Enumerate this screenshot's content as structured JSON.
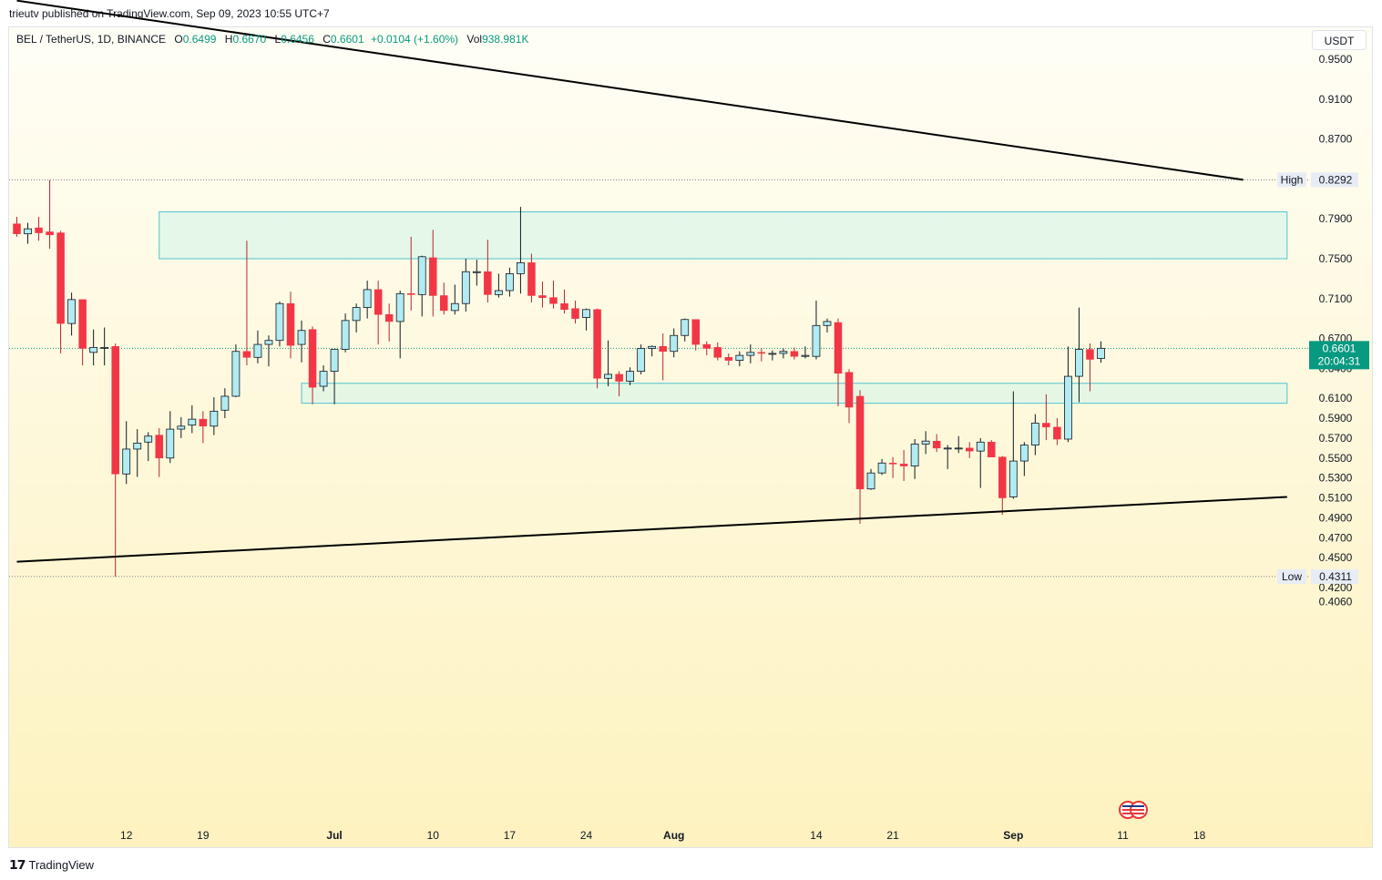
{
  "header": {
    "publisher_text": "trieutv published on TradingView.com, Sep 09, 2023 10:55 UTC+7"
  },
  "legend": {
    "symbol": "BEL / TetherUS, 1D, BINANCE",
    "open_label": "O",
    "open": "0.6499",
    "high_label": "H",
    "high": "0.6670",
    "low_label": "L",
    "low": "0.6456",
    "close_label": "C",
    "close": "0.6601",
    "change": "+0.0104 (+1.60%)",
    "vol_label": "Vol",
    "volume": "938.981K"
  },
  "currency_button": "USDT",
  "footer": {
    "brand": "TradingView"
  },
  "colors": {
    "up_fill": "#b2ebf2",
    "up_border": "#131722",
    "down_fill": "#f23645",
    "down_border": "#131722",
    "wick_up": "#131722",
    "wick_down": "#b22833",
    "zone_fill": "#d4f5e9",
    "zone_border": "#4fc3d0",
    "price_tag": "#089981",
    "line": "#000000"
  },
  "chart_data": {
    "type": "candlestick",
    "symbol": "BEL / TetherUS",
    "interval": "1D",
    "exchange": "BINANCE",
    "y_axis_ticks": [
      "0.9500",
      "0.9100",
      "0.8700",
      "0.7900",
      "0.7500",
      "0.7100",
      "0.6700",
      "0.6400",
      "0.6100",
      "0.5900",
      "0.5700",
      "0.5500",
      "0.5300",
      "0.5100",
      "0.4900",
      "0.4700",
      "0.4500",
      "0.4200",
      "0.4060"
    ],
    "x_axis_ticks": [
      "12",
      "19",
      "Jul",
      "10",
      "17",
      "24",
      "Aug",
      "14",
      "21",
      "Sep",
      "11",
      "18"
    ],
    "high_marker": {
      "label": "High",
      "value": "0.8292"
    },
    "low_marker": {
      "label": "Low",
      "value": "0.4311"
    },
    "last_price": {
      "value": "0.6601",
      "countdown": "20:04:31"
    },
    "zones": [
      {
        "from_date": "2023-06-15",
        "to_date": "2023-09-26",
        "low": 0.75,
        "high": 0.797
      },
      {
        "from_date": "2023-06-28",
        "to_date": "2023-09-26",
        "low": 0.605,
        "high": 0.625
      }
    ],
    "trendlines": [
      {
        "date1": "2023-06-02",
        "price1": 1.009,
        "date2": "2023-09-22",
        "price2": 0.8292
      },
      {
        "date1": "2023-06-02",
        "price1": 0.446,
        "date2": "2023-09-26",
        "price2": 0.511
      }
    ],
    "candles": [
      {
        "date": "2023-06-02",
        "o": 0.785,
        "h": 0.792,
        "l": 0.772,
        "c": 0.775
      },
      {
        "date": "2023-06-03",
        "o": 0.775,
        "h": 0.786,
        "l": 0.765,
        "c": 0.78
      },
      {
        "date": "2023-06-04",
        "o": 0.781,
        "h": 0.792,
        "l": 0.768,
        "c": 0.776
      },
      {
        "date": "2023-06-05",
        "o": 0.777,
        "h": 0.829,
        "l": 0.76,
        "c": 0.774
      },
      {
        "date": "2023-06-06",
        "o": 0.776,
        "h": 0.778,
        "l": 0.655,
        "c": 0.685
      },
      {
        "date": "2023-06-07",
        "o": 0.685,
        "h": 0.716,
        "l": 0.673,
        "c": 0.709
      },
      {
        "date": "2023-06-08",
        "o": 0.709,
        "h": 0.709,
        "l": 0.643,
        "c": 0.66
      },
      {
        "date": "2023-06-09",
        "o": 0.656,
        "h": 0.679,
        "l": 0.643,
        "c": 0.661
      },
      {
        "date": "2023-06-10",
        "o": 0.661,
        "h": 0.681,
        "l": 0.643,
        "c": 0.661
      },
      {
        "date": "2023-06-11",
        "o": 0.662,
        "h": 0.665,
        "l": 0.431,
        "c": 0.534
      },
      {
        "date": "2023-06-12",
        "o": 0.534,
        "h": 0.587,
        "l": 0.524,
        "c": 0.559
      },
      {
        "date": "2023-06-13",
        "o": 0.559,
        "h": 0.579,
        "l": 0.531,
        "c": 0.565
      },
      {
        "date": "2023-06-14",
        "o": 0.566,
        "h": 0.576,
        "l": 0.547,
        "c": 0.572
      },
      {
        "date": "2023-06-15",
        "o": 0.573,
        "h": 0.58,
        "l": 0.531,
        "c": 0.55
      },
      {
        "date": "2023-06-16",
        "o": 0.55,
        "h": 0.597,
        "l": 0.545,
        "c": 0.579
      },
      {
        "date": "2023-06-17",
        "o": 0.579,
        "h": 0.591,
        "l": 0.57,
        "c": 0.582
      },
      {
        "date": "2023-06-18",
        "o": 0.583,
        "h": 0.603,
        "l": 0.575,
        "c": 0.589
      },
      {
        "date": "2023-06-19",
        "o": 0.589,
        "h": 0.597,
        "l": 0.565,
        "c": 0.582
      },
      {
        "date": "2023-06-20",
        "o": 0.582,
        "h": 0.611,
        "l": 0.573,
        "c": 0.597
      },
      {
        "date": "2023-06-21",
        "o": 0.598,
        "h": 0.62,
        "l": 0.59,
        "c": 0.612
      },
      {
        "date": "2023-06-22",
        "o": 0.612,
        "h": 0.664,
        "l": 0.611,
        "c": 0.657
      },
      {
        "date": "2023-06-23",
        "o": 0.657,
        "h": 0.768,
        "l": 0.643,
        "c": 0.651
      },
      {
        "date": "2023-06-24",
        "o": 0.651,
        "h": 0.678,
        "l": 0.645,
        "c": 0.664
      },
      {
        "date": "2023-06-25",
        "o": 0.664,
        "h": 0.673,
        "l": 0.642,
        "c": 0.668
      },
      {
        "date": "2023-06-26",
        "o": 0.668,
        "h": 0.707,
        "l": 0.662,
        "c": 0.705
      },
      {
        "date": "2023-06-27",
        "o": 0.705,
        "h": 0.717,
        "l": 0.65,
        "c": 0.663
      },
      {
        "date": "2023-06-28",
        "o": 0.664,
        "h": 0.688,
        "l": 0.646,
        "c": 0.678
      },
      {
        "date": "2023-06-29",
        "o": 0.679,
        "h": 0.682,
        "l": 0.604,
        "c": 0.621
      },
      {
        "date": "2023-06-30",
        "o": 0.622,
        "h": 0.643,
        "l": 0.617,
        "c": 0.637
      },
      {
        "date": "2023-07-01",
        "o": 0.637,
        "h": 0.659,
        "l": 0.604,
        "c": 0.659
      },
      {
        "date": "2023-07-02",
        "o": 0.659,
        "h": 0.695,
        "l": 0.656,
        "c": 0.688
      },
      {
        "date": "2023-07-03",
        "o": 0.688,
        "h": 0.705,
        "l": 0.676,
        "c": 0.701
      },
      {
        "date": "2023-07-04",
        "o": 0.701,
        "h": 0.728,
        "l": 0.69,
        "c": 0.719
      },
      {
        "date": "2023-07-05",
        "o": 0.719,
        "h": 0.728,
        "l": 0.664,
        "c": 0.694
      },
      {
        "date": "2023-07-06",
        "o": 0.694,
        "h": 0.705,
        "l": 0.667,
        "c": 0.687
      },
      {
        "date": "2023-07-07",
        "o": 0.687,
        "h": 0.718,
        "l": 0.65,
        "c": 0.715
      },
      {
        "date": "2023-07-08",
        "o": 0.715,
        "h": 0.772,
        "l": 0.698,
        "c": 0.714
      },
      {
        "date": "2023-07-09",
        "o": 0.714,
        "h": 0.753,
        "l": 0.692,
        "c": 0.752
      },
      {
        "date": "2023-07-10",
        "o": 0.751,
        "h": 0.779,
        "l": 0.692,
        "c": 0.713
      },
      {
        "date": "2023-07-11",
        "o": 0.713,
        "h": 0.726,
        "l": 0.694,
        "c": 0.698
      },
      {
        "date": "2023-07-12",
        "o": 0.698,
        "h": 0.724,
        "l": 0.694,
        "c": 0.705
      },
      {
        "date": "2023-07-13",
        "o": 0.705,
        "h": 0.75,
        "l": 0.697,
        "c": 0.737
      },
      {
        "date": "2023-07-14",
        "o": 0.736,
        "h": 0.749,
        "l": 0.723,
        "c": 0.737
      },
      {
        "date": "2023-07-15",
        "o": 0.737,
        "h": 0.769,
        "l": 0.706,
        "c": 0.714
      },
      {
        "date": "2023-07-16",
        "o": 0.714,
        "h": 0.735,
        "l": 0.711,
        "c": 0.718
      },
      {
        "date": "2023-07-17",
        "o": 0.718,
        "h": 0.741,
        "l": 0.712,
        "c": 0.735
      },
      {
        "date": "2023-07-18",
        "o": 0.735,
        "h": 0.802,
        "l": 0.715,
        "c": 0.746
      },
      {
        "date": "2023-07-19",
        "o": 0.746,
        "h": 0.755,
        "l": 0.706,
        "c": 0.713
      },
      {
        "date": "2023-07-20",
        "o": 0.713,
        "h": 0.727,
        "l": 0.701,
        "c": 0.711
      },
      {
        "date": "2023-07-21",
        "o": 0.711,
        "h": 0.728,
        "l": 0.7,
        "c": 0.705
      },
      {
        "date": "2023-07-22",
        "o": 0.705,
        "h": 0.719,
        "l": 0.695,
        "c": 0.699
      },
      {
        "date": "2023-07-23",
        "o": 0.7,
        "h": 0.708,
        "l": 0.685,
        "c": 0.69
      },
      {
        "date": "2023-07-24",
        "o": 0.691,
        "h": 0.7,
        "l": 0.678,
        "c": 0.699
      },
      {
        "date": "2023-07-25",
        "o": 0.699,
        "h": 0.7,
        "l": 0.62,
        "c": 0.63
      },
      {
        "date": "2023-07-26",
        "o": 0.63,
        "h": 0.668,
        "l": 0.622,
        "c": 0.634
      },
      {
        "date": "2023-07-27",
        "o": 0.634,
        "h": 0.637,
        "l": 0.612,
        "c": 0.627
      },
      {
        "date": "2023-07-28",
        "o": 0.627,
        "h": 0.641,
        "l": 0.623,
        "c": 0.637
      },
      {
        "date": "2023-07-29",
        "o": 0.637,
        "h": 0.664,
        "l": 0.634,
        "c": 0.66
      },
      {
        "date": "2023-07-30",
        "o": 0.66,
        "h": 0.663,
        "l": 0.652,
        "c": 0.662
      },
      {
        "date": "2023-07-31",
        "o": 0.662,
        "h": 0.675,
        "l": 0.628,
        "c": 0.657
      },
      {
        "date": "2023-08-01",
        "o": 0.657,
        "h": 0.68,
        "l": 0.651,
        "c": 0.673
      },
      {
        "date": "2023-08-02",
        "o": 0.673,
        "h": 0.69,
        "l": 0.667,
        "c": 0.689
      },
      {
        "date": "2023-08-03",
        "o": 0.689,
        "h": 0.689,
        "l": 0.658,
        "c": 0.664
      },
      {
        "date": "2023-08-04",
        "o": 0.664,
        "h": 0.667,
        "l": 0.653,
        "c": 0.66
      },
      {
        "date": "2023-08-05",
        "o": 0.661,
        "h": 0.666,
        "l": 0.648,
        "c": 0.651
      },
      {
        "date": "2023-08-06",
        "o": 0.651,
        "h": 0.655,
        "l": 0.643,
        "c": 0.648
      },
      {
        "date": "2023-08-07",
        "o": 0.648,
        "h": 0.657,
        "l": 0.642,
        "c": 0.653
      },
      {
        "date": "2023-08-08",
        "o": 0.653,
        "h": 0.664,
        "l": 0.645,
        "c": 0.656
      },
      {
        "date": "2023-08-09",
        "o": 0.656,
        "h": 0.66,
        "l": 0.647,
        "c": 0.655
      },
      {
        "date": "2023-08-10",
        "o": 0.655,
        "h": 0.658,
        "l": 0.648,
        "c": 0.655
      },
      {
        "date": "2023-08-11",
        "o": 0.655,
        "h": 0.66,
        "l": 0.65,
        "c": 0.657
      },
      {
        "date": "2023-08-12",
        "o": 0.657,
        "h": 0.661,
        "l": 0.649,
        "c": 0.652
      },
      {
        "date": "2023-08-13",
        "o": 0.652,
        "h": 0.662,
        "l": 0.65,
        "c": 0.653
      },
      {
        "date": "2023-08-14",
        "o": 0.652,
        "h": 0.708,
        "l": 0.649,
        "c": 0.683
      },
      {
        "date": "2023-08-15",
        "o": 0.683,
        "h": 0.69,
        "l": 0.676,
        "c": 0.687
      },
      {
        "date": "2023-08-16",
        "o": 0.686,
        "h": 0.69,
        "l": 0.602,
        "c": 0.635
      },
      {
        "date": "2023-08-17",
        "o": 0.636,
        "h": 0.639,
        "l": 0.585,
        "c": 0.601
      },
      {
        "date": "2023-08-18",
        "o": 0.612,
        "h": 0.618,
        "l": 0.484,
        "c": 0.519
      },
      {
        "date": "2023-08-19",
        "o": 0.519,
        "h": 0.539,
        "l": 0.518,
        "c": 0.535
      },
      {
        "date": "2023-08-20",
        "o": 0.535,
        "h": 0.549,
        "l": 0.533,
        "c": 0.545
      },
      {
        "date": "2023-08-21",
        "o": 0.545,
        "h": 0.551,
        "l": 0.53,
        "c": 0.544
      },
      {
        "date": "2023-08-22",
        "o": 0.544,
        "h": 0.558,
        "l": 0.527,
        "c": 0.542
      },
      {
        "date": "2023-08-23",
        "o": 0.542,
        "h": 0.569,
        "l": 0.529,
        "c": 0.564
      },
      {
        "date": "2023-08-24",
        "o": 0.564,
        "h": 0.577,
        "l": 0.554,
        "c": 0.567
      },
      {
        "date": "2023-08-25",
        "o": 0.567,
        "h": 0.574,
        "l": 0.556,
        "c": 0.56
      },
      {
        "date": "2023-08-26",
        "o": 0.56,
        "h": 0.563,
        "l": 0.539,
        "c": 0.56
      },
      {
        "date": "2023-08-27",
        "o": 0.56,
        "h": 0.572,
        "l": 0.555,
        "c": 0.56
      },
      {
        "date": "2023-08-28",
        "o": 0.56,
        "h": 0.566,
        "l": 0.55,
        "c": 0.557
      },
      {
        "date": "2023-08-29",
        "o": 0.557,
        "h": 0.57,
        "l": 0.52,
        "c": 0.566
      },
      {
        "date": "2023-08-30",
        "o": 0.566,
        "h": 0.568,
        "l": 0.551,
        "c": 0.551
      },
      {
        "date": "2023-08-31",
        "o": 0.551,
        "h": 0.552,
        "l": 0.493,
        "c": 0.51
      },
      {
        "date": "2023-09-01",
        "o": 0.511,
        "h": 0.617,
        "l": 0.509,
        "c": 0.547
      },
      {
        "date": "2023-09-02",
        "o": 0.547,
        "h": 0.566,
        "l": 0.532,
        "c": 0.563
      },
      {
        "date": "2023-09-03",
        "o": 0.563,
        "h": 0.594,
        "l": 0.553,
        "c": 0.585
      },
      {
        "date": "2023-09-04",
        "o": 0.585,
        "h": 0.614,
        "l": 0.568,
        "c": 0.581
      },
      {
        "date": "2023-09-05",
        "o": 0.581,
        "h": 0.59,
        "l": 0.563,
        "c": 0.569
      },
      {
        "date": "2023-09-06",
        "o": 0.569,
        "h": 0.662,
        "l": 0.566,
        "c": 0.632
      },
      {
        "date": "2023-09-07",
        "o": 0.632,
        "h": 0.701,
        "l": 0.606,
        "c": 0.659
      },
      {
        "date": "2023-09-08",
        "o": 0.659,
        "h": 0.665,
        "l": 0.617,
        "c": 0.649
      },
      {
        "date": "2023-09-09",
        "o": 0.6499,
        "h": 0.667,
        "l": 0.6456,
        "c": 0.6601
      }
    ]
  }
}
